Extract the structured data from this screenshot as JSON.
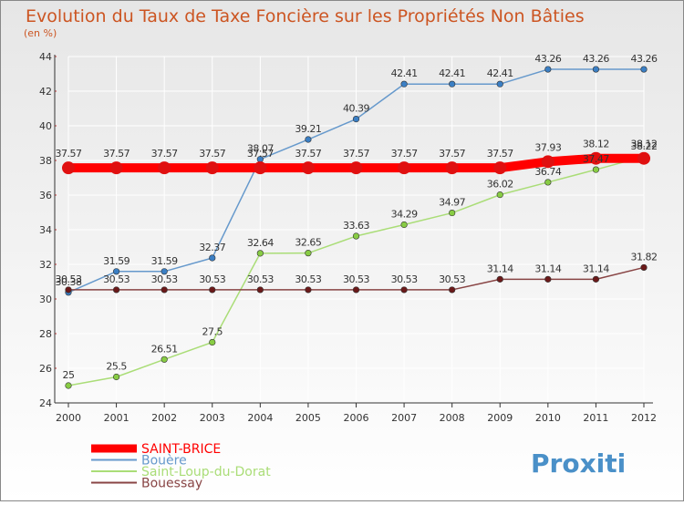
{
  "chart_data": {
    "type": "line",
    "title": "Evolution du Taux de Taxe Foncière sur les Propriétés Non Bâties",
    "subtitle": "(en %)",
    "xlabel": "",
    "ylabel": "",
    "ylim": [
      24,
      44
    ],
    "yticks": [
      "24",
      "26",
      "28",
      "30",
      "32",
      "34",
      "36",
      "38",
      "40",
      "42",
      "44"
    ],
    "categories": [
      "2000",
      "2001",
      "2002",
      "2003",
      "2004",
      "2005",
      "2006",
      "2007",
      "2008",
      "2009",
      "2010",
      "2011",
      "2012"
    ],
    "grid": true,
    "legend_position": "bottom-left",
    "series": [
      {
        "name": "SAINT-BRICE",
        "color": "#ff0000",
        "marker_color": "#e01010",
        "values": [
          37.57,
          37.57,
          37.57,
          37.57,
          37.57,
          37.57,
          37.57,
          37.57,
          37.57,
          37.57,
          37.93,
          38.12,
          38.12
        ],
        "labels": [
          "37.57",
          "37.57",
          "37.57",
          "37.57",
          "37.57",
          "37.57",
          "37.57",
          "37.57",
          "37.57",
          "37.57",
          "37.93",
          "38.12",
          "38.12"
        ]
      },
      {
        "name": "Bouère",
        "color": "#6699cc",
        "marker_color": "#3b7fc4",
        "values": [
          30.38,
          31.59,
          31.59,
          32.37,
          38.07,
          39.21,
          40.39,
          42.41,
          42.41,
          42.41,
          43.26,
          43.26,
          43.26
        ],
        "labels": [
          "30.38",
          "31.59",
          "31.59",
          "32.37",
          "38.07",
          "39.21",
          "40.39",
          "42.41",
          "42.41",
          "42.41",
          "43.26",
          "43.26",
          "43.26"
        ]
      },
      {
        "name": "Saint-Loup-du-Dorat",
        "color": "#aadd77",
        "marker_color": "#88cc44",
        "values": [
          25,
          25.5,
          26.51,
          27.5,
          32.64,
          32.65,
          33.63,
          34.29,
          34.97,
          36.02,
          36.74,
          37.47,
          38.22
        ],
        "labels": [
          "25",
          "25.5",
          "26.51",
          "27.5",
          "32.64",
          "32.65",
          "33.63",
          "34.29",
          "34.97",
          "36.02",
          "36.74",
          "37.47",
          "38.22"
        ]
      },
      {
        "name": "Bouessay",
        "color": "#884444",
        "marker_color": "#6b1a1a",
        "values": [
          30.53,
          30.53,
          30.53,
          30.53,
          30.53,
          30.53,
          30.53,
          30.53,
          30.53,
          31.14,
          31.14,
          31.14,
          31.82
        ],
        "labels": [
          "30.53",
          "30.53",
          "30.53",
          "30.53",
          "30.53",
          "30.53",
          "30.53",
          "30.53",
          "30.53",
          "31.14",
          "31.14",
          "31.14",
          "31.82"
        ]
      }
    ]
  },
  "branding": {
    "logo_text": "Proxiti"
  },
  "colors": {
    "background_top": "#e6e6e6",
    "background_bottom": "#ffffff",
    "title": "#cc5522",
    "subtitle": "#cc5522",
    "grid": "#ffffff",
    "axis": "#000000",
    "data_label": "#333333"
  }
}
